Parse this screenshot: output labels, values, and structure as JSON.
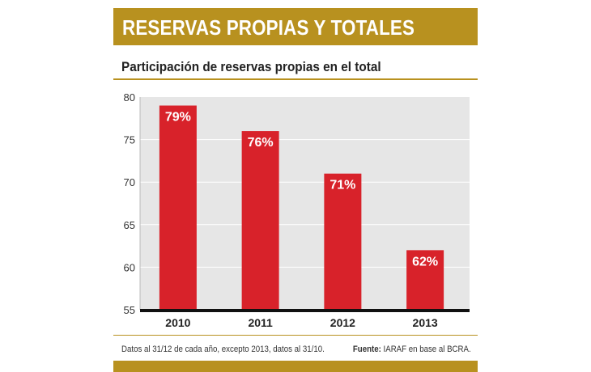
{
  "header": {
    "title": "RESERVAS PROPIAS Y TOTALES"
  },
  "colors": {
    "accent": "#b8911f",
    "bar": "#d8222a",
    "plot_bg": "#e6e6e6"
  },
  "chart_data": {
    "type": "bar",
    "title": "Participación de reservas propias en el total",
    "categories": [
      "2010",
      "2011",
      "2012",
      "2013"
    ],
    "values": [
      79,
      76,
      71,
      62
    ],
    "data_labels": [
      "79%",
      "76%",
      "71%",
      "62%"
    ],
    "yticks": [
      "80",
      "75",
      "70",
      "65",
      "60",
      "55"
    ],
    "ylim": [
      55,
      80
    ],
    "xlabel": "",
    "ylabel": "",
    "grid": true
  },
  "footer": {
    "note": "Datos al 31/12 de cada año, excepto 2013, datos al 31/10.",
    "source_label": "Fuente:",
    "source_text": "IARAF en base al BCRA."
  }
}
